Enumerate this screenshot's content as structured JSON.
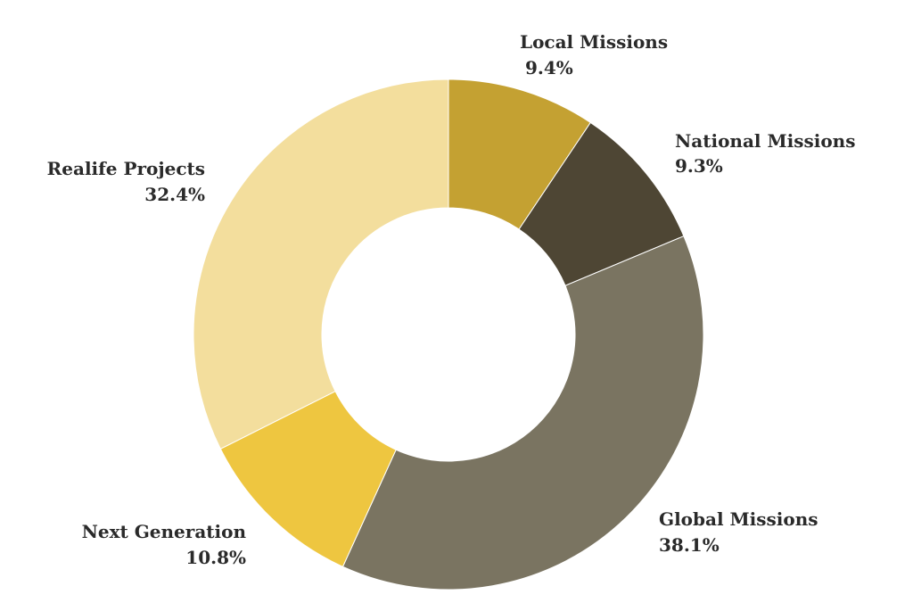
{
  "chart_data": {
    "type": "pie",
    "donut": true,
    "title": "",
    "legend": "none",
    "slices": [
      {
        "label": "Local Missions",
        "value": 9.4,
        "display": "9.4%",
        "color": "#C4A132"
      },
      {
        "label": "National Missions",
        "value": 9.3,
        "display": "9.3%",
        "color": "#4E4634"
      },
      {
        "label": "Global Missions",
        "value": 38.1,
        "display": "38.1%",
        "color": "#7A7461"
      },
      {
        "label": "Next Generation",
        "value": 10.8,
        "display": "10.8%",
        "color": "#EEC640"
      },
      {
        "label": "Realife Projects",
        "value": 32.4,
        "display": "32.4%",
        "color": "#F3DE9D"
      }
    ]
  }
}
